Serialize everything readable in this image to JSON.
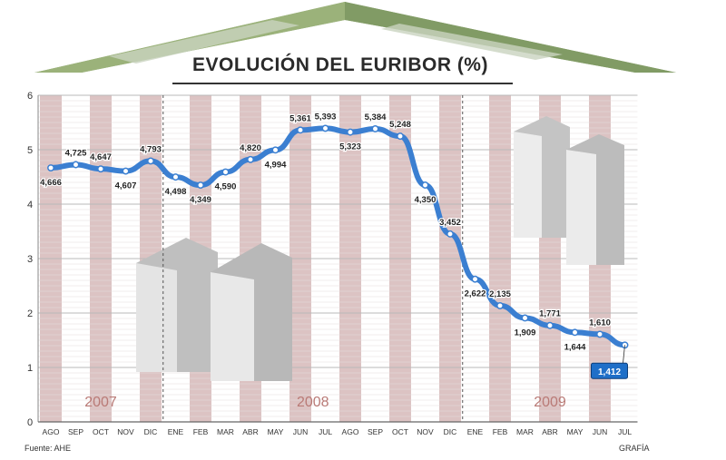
{
  "title": "EVOLUCIÓN DEL EURIBOR (%)",
  "source": "Fuente: AHE",
  "credit": "GRAFÍA",
  "colors": {
    "line": "#3b7fd1",
    "stripe": "#dcc3c3",
    "highlight": "#1f6fc8",
    "year_label": "#b97a76"
  },
  "chart_data": {
    "type": "line",
    "title": "EVOLUCIÓN DEL EURIBOR (%)",
    "xlabel": "",
    "ylabel": "",
    "ylim": [
      0,
      6
    ],
    "yticks": [
      "0",
      "1",
      "2",
      "3",
      "4",
      "5",
      "6"
    ],
    "grid": true,
    "categories": [
      "AGO",
      "SEP",
      "OCT",
      "NOV",
      "DIC",
      "ENE",
      "FEB",
      "MAR",
      "ABR",
      "MAY",
      "JUN",
      "JUL",
      "AGO",
      "SEP",
      "OCT",
      "NOV",
      "DIC",
      "ENE",
      "FEB",
      "MAR",
      "ABR",
      "MAY",
      "JUN",
      "JUL"
    ],
    "years": [
      {
        "label": "2007",
        "first": 0,
        "last": 4
      },
      {
        "label": "2008",
        "first": 5,
        "last": 16
      },
      {
        "label": "2009",
        "first": 17,
        "last": 23
      }
    ],
    "series": [
      {
        "values": [
          4.666,
          4.725,
          4.647,
          4.607,
          4.793,
          4.498,
          4.349,
          4.59,
          4.82,
          4.994,
          5.361,
          5.393,
          5.323,
          5.384,
          5.248,
          4.35,
          3.452,
          2.622,
          2.135,
          1.909,
          1.771,
          1.644,
          1.61,
          1.412
        ],
        "labels": [
          "4,666",
          "4,725",
          "4,647",
          "4,607",
          "4,793",
          "4,498",
          "4,349",
          "4,590",
          "4,820",
          "4,994",
          "5,361",
          "5,393",
          "5,323",
          "5,384",
          "5,248",
          "4,350",
          "3,452",
          "2,622",
          "2,135",
          "1,909",
          "1,771",
          "1,644",
          "1,610",
          "1,412"
        ]
      }
    ],
    "highlight_last": true
  }
}
